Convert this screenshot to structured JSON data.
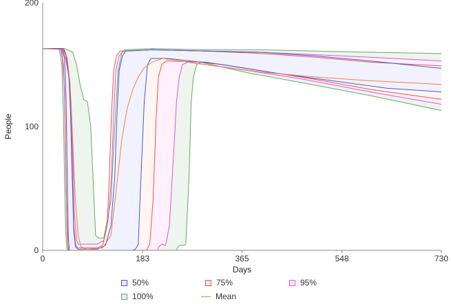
{
  "chart_data": {
    "type": "area",
    "title": "",
    "xlabel": "Days",
    "ylabel": "People",
    "xlim": [
      0,
      730
    ],
    "ylim": [
      0,
      200
    ],
    "x_ticks": [
      {
        "value": 0,
        "label": "0"
      },
      {
        "value": 183,
        "label": "183"
      },
      {
        "value": 365,
        "label": "365"
      },
      {
        "value": 548,
        "label": "548"
      },
      {
        "value": 730,
        "label": "730"
      }
    ],
    "y_ticks": [
      {
        "value": 0,
        "label": "0"
      },
      {
        "value": 100,
        "label": "100"
      },
      {
        "value": 200,
        "label": "200"
      }
    ],
    "grid": false,
    "legend_position": "bottom",
    "series": [
      {
        "name": "100%",
        "kind": "band",
        "color": "#66aa66",
        "fill": "#eef4ee",
        "upper": [
          [
            0,
            163
          ],
          [
            40,
            163
          ],
          [
            55,
            160
          ],
          [
            62,
            150
          ],
          [
            68,
            135
          ],
          [
            75,
            122
          ],
          [
            82,
            120
          ],
          [
            88,
            100
          ],
          [
            92,
            60
          ],
          [
            97,
            12
          ],
          [
            102,
            10
          ],
          [
            112,
            10
          ],
          [
            125,
            40
          ],
          [
            132,
            100
          ],
          [
            138,
            145
          ],
          [
            145,
            160
          ],
          [
            150,
            162
          ],
          [
            200,
            163
          ],
          [
            300,
            162
          ],
          [
            400,
            162
          ],
          [
            500,
            161
          ],
          [
            600,
            160
          ],
          [
            730,
            159
          ]
        ],
        "lower": [
          [
            0,
            163
          ],
          [
            30,
            163
          ],
          [
            35,
            150
          ],
          [
            38,
            110
          ],
          [
            40,
            60
          ],
          [
            42,
            15
          ],
          [
            44,
            2
          ],
          [
            46,
            0
          ],
          [
            100,
            0
          ],
          [
            150,
            0
          ],
          [
            200,
            0
          ],
          [
            245,
            0
          ],
          [
            248,
            3
          ],
          [
            252,
            4
          ],
          [
            258,
            4
          ],
          [
            262,
            5
          ],
          [
            268,
            60
          ],
          [
            272,
            120
          ],
          [
            276,
            140
          ],
          [
            282,
            150
          ],
          [
            290,
            152
          ],
          [
            380,
            143
          ],
          [
            480,
            135
          ],
          [
            600,
            125
          ],
          [
            730,
            113
          ]
        ]
      },
      {
        "name": "95%",
        "kind": "band",
        "color": "#dd55dd",
        "fill": "#fff0fc",
        "upper": [
          [
            0,
            163
          ],
          [
            35,
            163
          ],
          [
            42,
            155
          ],
          [
            48,
            140
          ],
          [
            52,
            120
          ],
          [
            55,
            80
          ],
          [
            58,
            30
          ],
          [
            62,
            8
          ],
          [
            65,
            5
          ],
          [
            100,
            5
          ],
          [
            112,
            8
          ],
          [
            120,
            25
          ],
          [
            126,
            60
          ],
          [
            130,
            110
          ],
          [
            134,
            145
          ],
          [
            140,
            157
          ],
          [
            148,
            161
          ],
          [
            200,
            162
          ],
          [
            300,
            161
          ],
          [
            400,
            160
          ],
          [
            500,
            158
          ],
          [
            600,
            156
          ],
          [
            730,
            153
          ]
        ],
        "lower": [
          [
            0,
            163
          ],
          [
            32,
            163
          ],
          [
            36,
            155
          ],
          [
            40,
            130
          ],
          [
            42,
            80
          ],
          [
            44,
            30
          ],
          [
            46,
            5
          ],
          [
            48,
            0
          ],
          [
            130,
            0
          ],
          [
            200,
            0
          ],
          [
            210,
            0
          ],
          [
            213,
            3
          ],
          [
            218,
            5
          ],
          [
            225,
            4
          ],
          [
            232,
            20
          ],
          [
            240,
            80
          ],
          [
            245,
            120
          ],
          [
            250,
            140
          ],
          [
            256,
            150
          ],
          [
            265,
            152
          ],
          [
            380,
            145
          ],
          [
            480,
            138
          ],
          [
            600,
            128
          ],
          [
            730,
            118
          ]
        ]
      },
      {
        "name": "75%",
        "kind": "band",
        "color": "#ee5544",
        "fill": "#fff6f4",
        "upper": [
          [
            0,
            163
          ],
          [
            36,
            163
          ],
          [
            42,
            158
          ],
          [
            47,
            145
          ],
          [
            51,
            120
          ],
          [
            54,
            70
          ],
          [
            57,
            20
          ],
          [
            60,
            5
          ],
          [
            64,
            2
          ],
          [
            100,
            2
          ],
          [
            110,
            4
          ],
          [
            118,
            20
          ],
          [
            122,
            60
          ],
          [
            126,
            110
          ],
          [
            130,
            145
          ],
          [
            135,
            157
          ],
          [
            142,
            161
          ],
          [
            200,
            162
          ],
          [
            300,
            161
          ],
          [
            400,
            159
          ],
          [
            500,
            156
          ],
          [
            600,
            152
          ],
          [
            730,
            149
          ]
        ],
        "lower": [
          [
            0,
            163
          ],
          [
            34,
            163
          ],
          [
            38,
            150
          ],
          [
            41,
            110
          ],
          [
            43,
            50
          ],
          [
            45,
            10
          ],
          [
            47,
            0
          ],
          [
            140,
            0
          ],
          [
            180,
            0
          ],
          [
            190,
            0
          ],
          [
            196,
            5
          ],
          [
            202,
            40
          ],
          [
            208,
            110
          ],
          [
            212,
            140
          ],
          [
            218,
            150
          ],
          [
            226,
            153
          ],
          [
            300,
            152
          ],
          [
            400,
            145
          ],
          [
            500,
            138
          ],
          [
            600,
            130
          ],
          [
            730,
            122
          ]
        ]
      },
      {
        "name": "50%",
        "kind": "band",
        "color": "#4455dd",
        "fill": "#f2f2ff",
        "upper": [
          [
            0,
            163
          ],
          [
            38,
            163
          ],
          [
            44,
            156
          ],
          [
            48,
            140
          ],
          [
            51,
            110
          ],
          [
            54,
            60
          ],
          [
            57,
            15
          ],
          [
            60,
            3
          ],
          [
            64,
            1
          ],
          [
            100,
            1
          ],
          [
            115,
            4
          ],
          [
            125,
            20
          ],
          [
            132,
            60
          ],
          [
            136,
            110
          ],
          [
            140,
            145
          ],
          [
            146,
            157
          ],
          [
            152,
            161
          ],
          [
            200,
            162
          ],
          [
            300,
            161
          ],
          [
            400,
            160
          ],
          [
            500,
            157
          ],
          [
            600,
            153
          ],
          [
            730,
            147
          ]
        ],
        "lower": [
          [
            0,
            163
          ],
          [
            35,
            163
          ],
          [
            40,
            155
          ],
          [
            43,
            120
          ],
          [
            45,
            60
          ],
          [
            47,
            10
          ],
          [
            49,
            0
          ],
          [
            140,
            0
          ],
          [
            165,
            0
          ],
          [
            170,
            1
          ],
          [
            175,
            5
          ],
          [
            180,
            60
          ],
          [
            186,
            120
          ],
          [
            192,
            150
          ],
          [
            198,
            155
          ],
          [
            230,
            155
          ],
          [
            330,
            150
          ],
          [
            430,
            143
          ],
          [
            530,
            137
          ],
          [
            630,
            131
          ],
          [
            730,
            128
          ]
        ]
      },
      {
        "name": "Mean",
        "kind": "line",
        "color": "#f08040",
        "points": [
          [
            0,
            163
          ],
          [
            40,
            162
          ],
          [
            45,
            155
          ],
          [
            50,
            135
          ],
          [
            55,
            90
          ],
          [
            60,
            40
          ],
          [
            65,
            12
          ],
          [
            70,
            3
          ],
          [
            80,
            1
          ],
          [
            110,
            2
          ],
          [
            125,
            12
          ],
          [
            135,
            50
          ],
          [
            145,
            90
          ],
          [
            155,
            115
          ],
          [
            165,
            130
          ],
          [
            175,
            140
          ],
          [
            185,
            147
          ],
          [
            200,
            152
          ],
          [
            220,
            155
          ],
          [
            300,
            150
          ],
          [
            400,
            144
          ],
          [
            500,
            140
          ],
          [
            600,
            137
          ],
          [
            730,
            134
          ]
        ]
      }
    ]
  },
  "legend": {
    "items": [
      {
        "label": "50%",
        "color": "#4455dd",
        "fill": "#e8e8ff",
        "kind": "box"
      },
      {
        "label": "75%",
        "color": "#ee5544",
        "fill": "#ffe8e4",
        "kind": "box"
      },
      {
        "label": "95%",
        "color": "#dd55dd",
        "fill": "#ffe4fb",
        "kind": "box"
      },
      {
        "label": "100%",
        "color": "#66aa66",
        "fill": "#e4f0e4",
        "kind": "box"
      },
      {
        "label": "Mean",
        "color": "#f08040",
        "kind": "line"
      }
    ]
  }
}
